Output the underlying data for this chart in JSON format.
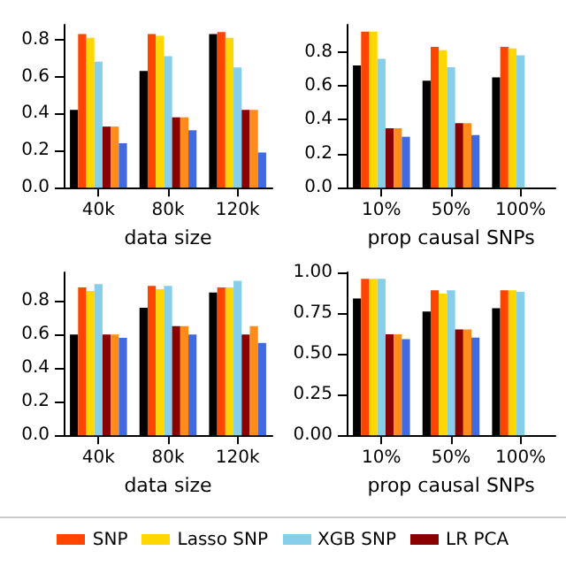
{
  "chart_data": [
    {
      "type": "bar",
      "xlabel": "data size",
      "categories": [
        "40k",
        "80k",
        "120k"
      ],
      "ylim": [
        0,
        0.88
      ],
      "yticks": [
        {
          "value": 0,
          "label": "0.0"
        },
        {
          "value": 0.2,
          "label": "0.2"
        },
        {
          "value": 0.4,
          "label": "0.4"
        },
        {
          "value": 0.6,
          "label": "0.6"
        },
        {
          "value": 0.8,
          "label": "0.8"
        }
      ],
      "grid": false,
      "legend": "bottom",
      "series": [
        {
          "color": "#000000",
          "values": [
            0.42,
            0.63,
            0.83
          ]
        },
        {
          "name": "SNP",
          "color": "#ff4500",
          "values": [
            0.83,
            0.83,
            0.84
          ]
        },
        {
          "name": "Lasso SNP",
          "color": "#ffd700",
          "values": [
            0.81,
            0.82,
            0.81
          ]
        },
        {
          "name": "XGB SNP",
          "color": "#87ceeb",
          "values": [
            0.68,
            0.71,
            0.65
          ]
        },
        {
          "name": "LR PCA",
          "color": "#8b0000",
          "values": [
            0.33,
            0.38,
            0.42
          ]
        },
        {
          "color": "#ff8c1a",
          "values": [
            0.33,
            0.38,
            0.42
          ]
        },
        {
          "color": "#4169e1",
          "values": [
            0.24,
            0.31,
            0.19
          ]
        }
      ]
    },
    {
      "type": "bar",
      "xlabel": "prop causal SNPs",
      "categories": [
        "10%",
        "50%",
        "100%"
      ],
      "ylim": [
        0,
        0.96
      ],
      "yticks": [
        {
          "value": 0,
          "label": "0.0"
        },
        {
          "value": 0.2,
          "label": "0.2"
        },
        {
          "value": 0.4,
          "label": "0.4"
        },
        {
          "value": 0.6,
          "label": "0.6"
        },
        {
          "value": 0.8,
          "label": "0.8"
        }
      ],
      "grid": false,
      "series": [
        {
          "color": "#000000",
          "values": [
            0.72,
            0.63,
            0.65
          ]
        },
        {
          "color": "#ff4500",
          "values": [
            0.92,
            0.83,
            0.83
          ]
        },
        {
          "color": "#ffd700",
          "values": [
            0.92,
            0.81,
            0.82
          ]
        },
        {
          "color": "#87ceeb",
          "values": [
            0.76,
            0.71,
            0.78
          ]
        },
        {
          "color": "#8b0000",
          "values": [
            0.35,
            0.38,
            null
          ]
        },
        {
          "color": "#ff8c1a",
          "values": [
            0.35,
            0.38,
            null
          ]
        },
        {
          "color": "#4169e1",
          "values": [
            0.3,
            0.31,
            null
          ]
        }
      ]
    },
    {
      "type": "bar",
      "xlabel": "data size",
      "categories": [
        "40k",
        "80k",
        "120k"
      ],
      "ylim": [
        0,
        0.97
      ],
      "yticks": [
        {
          "value": 0,
          "label": "0.0"
        },
        {
          "value": 0.2,
          "label": "0.2"
        },
        {
          "value": 0.4,
          "label": "0.4"
        },
        {
          "value": 0.6,
          "label": "0.6"
        },
        {
          "value": 0.8,
          "label": "0.8"
        }
      ],
      "grid": false,
      "series": [
        {
          "color": "#000000",
          "values": [
            0.6,
            0.76,
            0.85
          ]
        },
        {
          "color": "#ff4500",
          "values": [
            0.88,
            0.89,
            0.88
          ]
        },
        {
          "color": "#ffd700",
          "values": [
            0.86,
            0.87,
            0.88
          ]
        },
        {
          "color": "#87ceeb",
          "values": [
            0.9,
            0.89,
            0.92
          ]
        },
        {
          "color": "#8b0000",
          "values": [
            0.6,
            0.65,
            0.6
          ]
        },
        {
          "color": "#ff8c1a",
          "values": [
            0.6,
            0.65,
            0.65
          ]
        },
        {
          "color": "#4169e1",
          "values": [
            0.58,
            0.6,
            0.55
          ]
        }
      ]
    },
    {
      "type": "bar",
      "xlabel": "prop causal SNPs",
      "categories": [
        "10%",
        "50%",
        "100%"
      ],
      "ylim": [
        0,
        1.0
      ],
      "yticks": [
        {
          "value": 0,
          "label": "0.00"
        },
        {
          "value": 0.25,
          "label": "0.25"
        },
        {
          "value": 0.5,
          "label": "0.50"
        },
        {
          "value": 0.75,
          "label": "0.75"
        },
        {
          "value": 1.0,
          "label": "1.00"
        }
      ],
      "grid": false,
      "series": [
        {
          "color": "#000000",
          "values": [
            0.84,
            0.76,
            0.78
          ]
        },
        {
          "color": "#ff4500",
          "values": [
            0.96,
            0.89,
            0.89
          ]
        },
        {
          "color": "#ffd700",
          "values": [
            0.96,
            0.87,
            0.89
          ]
        },
        {
          "color": "#87ceeb",
          "values": [
            0.96,
            0.89,
            0.88
          ]
        },
        {
          "color": "#8b0000",
          "values": [
            0.62,
            0.65,
            null
          ]
        },
        {
          "color": "#ff8c1a",
          "values": [
            0.62,
            0.65,
            null
          ]
        },
        {
          "color": "#4169e1",
          "values": [
            0.59,
            0.6,
            null
          ]
        }
      ]
    }
  ]
}
